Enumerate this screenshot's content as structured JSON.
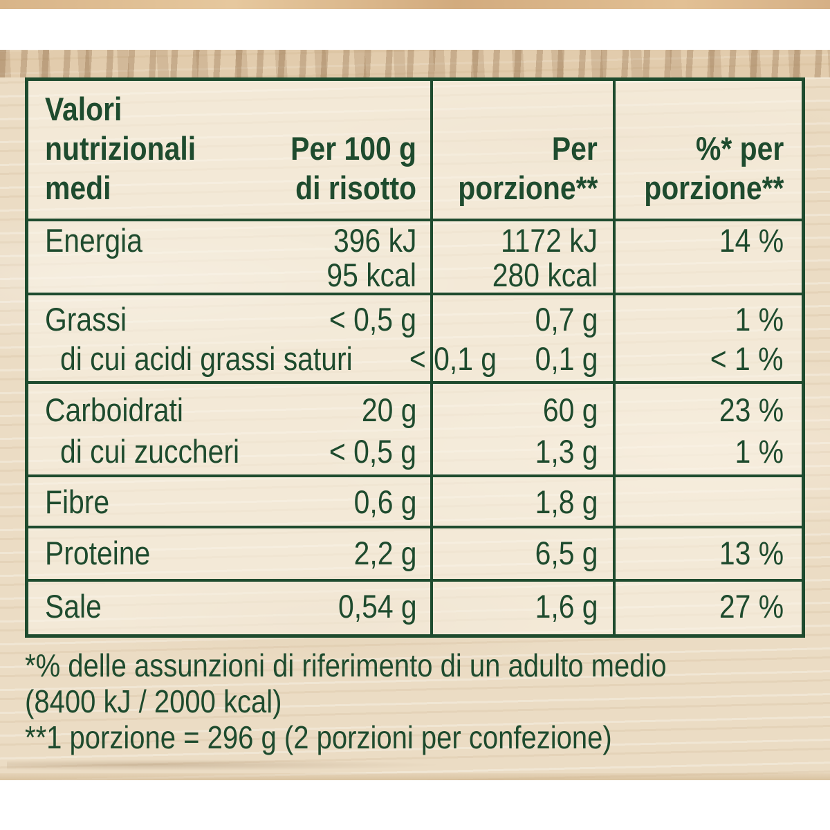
{
  "colors": {
    "text_green": "#1e4b2e",
    "border_green": "#1e4b2e",
    "wood_light": "#ebdcc4",
    "wood_edge": "#d8b488",
    "cell_tint": "#faf4e7",
    "white": "#ffffff"
  },
  "table": {
    "header": {
      "label_lines": [
        "Valori",
        "nutrizionali",
        "medi"
      ],
      "per100_lines": [
        "Per 100 g",
        "di risotto"
      ],
      "portion_lines": [
        "Per",
        "porzione**"
      ],
      "percent_lines": [
        "%* per",
        "porzione**"
      ]
    },
    "rows": {
      "energia": {
        "label": "Energia",
        "per100": [
          "396 kJ",
          "95 kcal"
        ],
        "portion": [
          "1172 kJ",
          "280 kcal"
        ],
        "percent": [
          "14 %"
        ]
      },
      "grassi": {
        "label": "Grassi",
        "per100": [
          "< 0,5 g"
        ],
        "portion": [
          "0,7 g"
        ],
        "percent": [
          "1 %"
        ]
      },
      "saturi": {
        "label": "di cui acidi grassi saturi",
        "per100": [
          "< 0,1 g"
        ],
        "portion": [
          "0,1 g"
        ],
        "percent": [
          "< 1 %"
        ]
      },
      "carboidrati": {
        "label": "Carboidrati",
        "per100": [
          "20 g"
        ],
        "portion": [
          "60 g"
        ],
        "percent": [
          "23 %"
        ]
      },
      "zuccheri": {
        "label": "di cui zuccheri",
        "per100": [
          "< 0,5 g"
        ],
        "portion": [
          "1,3 g"
        ],
        "percent": [
          "1 %"
        ]
      },
      "fibre": {
        "label": "Fibre",
        "per100": [
          "0,6 g"
        ],
        "portion": [
          "1,8 g"
        ],
        "percent": [
          ""
        ]
      },
      "proteine": {
        "label": "Proteine",
        "per100": [
          "2,2 g"
        ],
        "portion": [
          "6,5 g"
        ],
        "percent": [
          "13 %"
        ]
      },
      "sale": {
        "label": "Sale",
        "per100": [
          "0,54 g"
        ],
        "portion": [
          "1,6 g"
        ],
        "percent": [
          "27 %"
        ]
      }
    }
  },
  "footnotes": {
    "reference_lines": [
      "*% delle assunzioni di riferimento di un adulto medio",
      "(8400 kJ / 2000 kcal)"
    ],
    "portion_definition": "**1 porzione = 296 g (2 porzioni per confezione)"
  }
}
